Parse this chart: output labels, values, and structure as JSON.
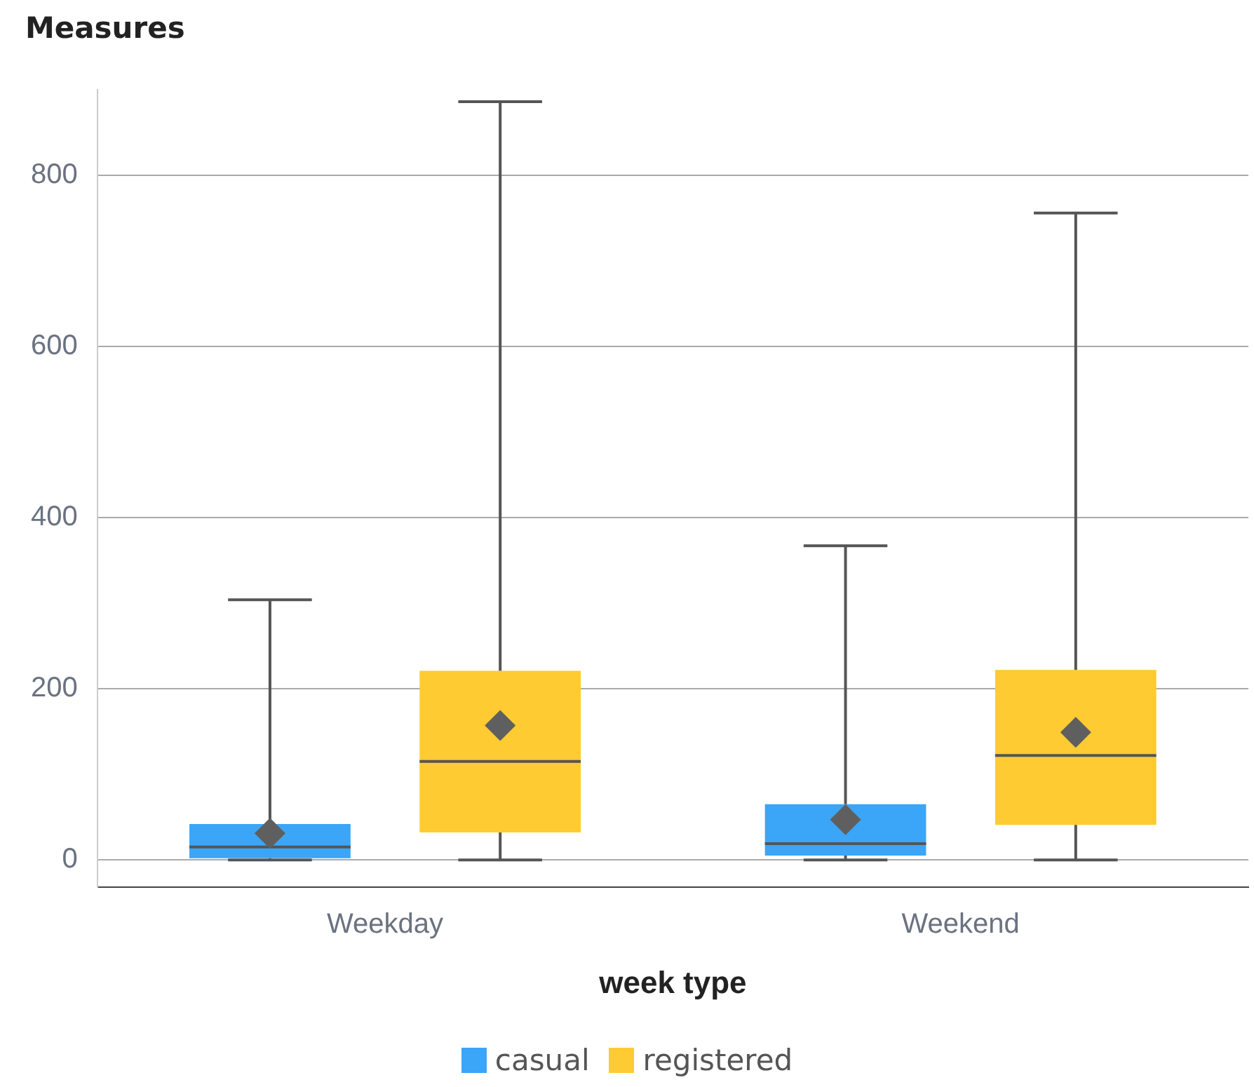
{
  "chart_data": {
    "type": "box",
    "annotations": [
      "Measures"
    ],
    "xlabel": "week type",
    "categories": [
      "Weekday",
      "Weekend"
    ],
    "series": [
      {
        "name": "casual",
        "color": "#3ba5f7",
        "boxes": [
          {
            "low": 0,
            "q1": 2,
            "median": 15,
            "q3": 42,
            "high": 304,
            "mean": 31
          },
          {
            "low": 0,
            "q1": 5,
            "median": 19,
            "q3": 65,
            "high": 367,
            "mean": 47
          }
        ]
      },
      {
        "name": "registered",
        "color": "#ffcb33",
        "boxes": [
          {
            "low": 0,
            "q1": 32,
            "median": 115,
            "q3": 221,
            "high": 886,
            "mean": 157
          },
          {
            "low": 0,
            "q1": 41,
            "median": 122,
            "q3": 222,
            "high": 756,
            "mean": 149
          }
        ]
      }
    ],
    "ylim": [
      -32,
      900
    ],
    "yticks": [
      0,
      200,
      400,
      600,
      800
    ],
    "grid": "y",
    "legend": "bottom",
    "marker": "diamond"
  }
}
